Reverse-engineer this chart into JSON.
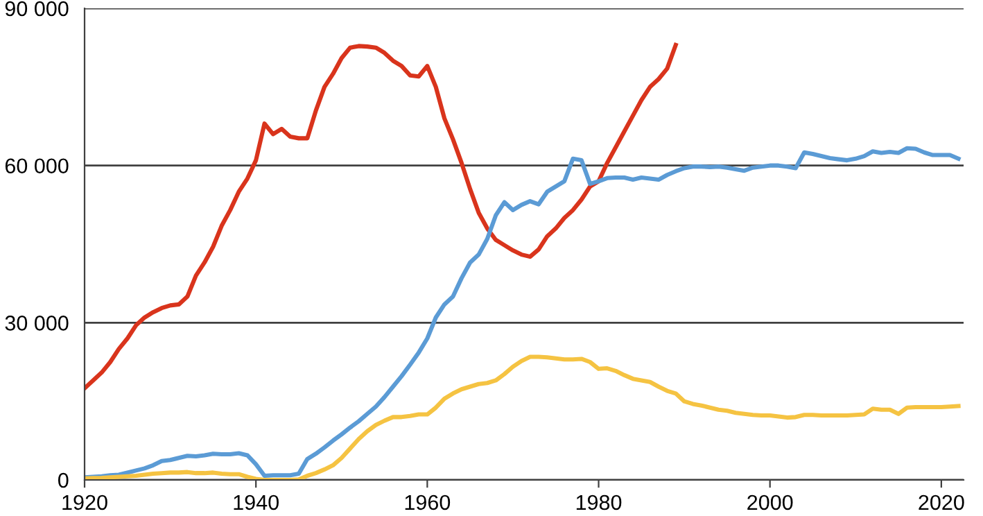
{
  "chart_data": {
    "type": "line",
    "xlim": [
      1920,
      2022.6
    ],
    "xticks": [
      1920,
      1940,
      1960,
      1980,
      2000,
      2020
    ],
    "ylim": [
      0,
      90000
    ],
    "yticks": [
      {
        "value": 0,
        "label": "0"
      },
      {
        "value": 30000,
        "label": "30 000"
      },
      {
        "value": 60000,
        "label": "60 000"
      },
      {
        "value": 90000,
        "label": "90 000"
      }
    ],
    "grid": "y",
    "line_style": "solid",
    "series": [
      {
        "color": "#d9341c",
        "x": [
          1920,
          1921,
          1922,
          1923,
          1924,
          1925,
          1926,
          1927,
          1928,
          1929,
          1930,
          1931,
          1932,
          1933,
          1934,
          1935,
          1936,
          1937,
          1938,
          1939,
          1940,
          1941,
          1942,
          1943,
          1944,
          1945,
          1946,
          1947,
          1948,
          1949,
          1950,
          1951,
          1952,
          1953,
          1954,
          1955,
          1956,
          1957,
          1958,
          1959,
          1960,
          1961,
          1962,
          1963,
          1964,
          1965,
          1966,
          1967,
          1968,
          1969,
          1970,
          1971,
          1972,
          1973,
          1974,
          1975,
          1976,
          1977,
          1978,
          1979,
          1980,
          1981,
          1982,
          1983,
          1984,
          1985,
          1986,
          1987,
          1988,
          1989
        ],
        "values": [
          17500,
          19000,
          20500,
          22500,
          25000,
          27000,
          29500,
          31000,
          32000,
          32800,
          33300,
          33500,
          35000,
          39000,
          41500,
          44500,
          48500,
          51500,
          55000,
          57500,
          61000,
          68000,
          66000,
          67000,
          65500,
          65200,
          65200,
          70500,
          75000,
          77500,
          80500,
          82500,
          82800,
          82700,
          82500,
          81500,
          80000,
          79000,
          77200,
          77000,
          79000,
          75000,
          69000,
          65000,
          60500,
          55500,
          51000,
          48000,
          45800,
          44800,
          43800,
          43000,
          42600,
          44000,
          46500,
          48000,
          50000,
          51500,
          53500,
          56000,
          57000,
          60500,
          63500,
          66500,
          69500,
          72500,
          75000,
          76500,
          78500,
          83000
        ]
      },
      {
        "color": "#5b9bd5",
        "x": [
          1920,
          1921,
          1922,
          1923,
          1924,
          1925,
          1926,
          1927,
          1928,
          1929,
          1930,
          1931,
          1932,
          1933,
          1934,
          1935,
          1936,
          1937,
          1938,
          1939,
          1940,
          1941,
          1942,
          1943,
          1944,
          1945,
          1946,
          1947,
          1948,
          1949,
          1950,
          1951,
          1952,
          1953,
          1954,
          1955,
          1956,
          1957,
          1958,
          1959,
          1960,
          1961,
          1962,
          1963,
          1964,
          1965,
          1966,
          1967,
          1968,
          1969,
          1970,
          1971,
          1972,
          1973,
          1974,
          1975,
          1976,
          1977,
          1978,
          1979,
          1980,
          1981,
          1982,
          1983,
          1984,
          1985,
          1986,
          1987,
          1988,
          1989,
          1990,
          1991,
          1992,
          1993,
          1994,
          1995,
          1996,
          1997,
          1998,
          1999,
          2000,
          2001,
          2002,
          2003,
          2004,
          2005,
          2006,
          2007,
          2008,
          2009,
          2010,
          2011,
          2012,
          2013,
          2014,
          2015,
          2016,
          2017,
          2018,
          2019,
          2020,
          2021,
          2022
        ],
        "values": [
          500,
          600,
          700,
          900,
          1000,
          1400,
          1800,
          2200,
          2800,
          3600,
          3800,
          4200,
          4600,
          4500,
          4700,
          5000,
          4900,
          4900,
          5100,
          4700,
          3000,
          800,
          900,
          900,
          900,
          1200,
          4000,
          5000,
          6200,
          7500,
          8700,
          10000,
          11200,
          12600,
          14000,
          15800,
          17800,
          19800,
          22000,
          24300,
          27000,
          31000,
          33500,
          35000,
          38500,
          41500,
          43000,
          46000,
          50500,
          53000,
          51500,
          52500,
          53200,
          52600,
          55000,
          56000,
          57000,
          61300,
          61000,
          56500,
          57000,
          57600,
          57700,
          57700,
          57300,
          57700,
          57500,
          57300,
          58200,
          58900,
          59500,
          59800,
          59800,
          59700,
          59800,
          59600,
          59300,
          59000,
          59600,
          59800,
          60000,
          60000,
          59800,
          59500,
          62500,
          62200,
          61800,
          61400,
          61200,
          61000,
          61300,
          61800,
          62700,
          62400,
          62600,
          62400,
          63300,
          63200,
          62500,
          62000,
          62000,
          62000,
          61300
        ]
      },
      {
        "color": "#f5c342",
        "x": [
          1920,
          1921,
          1922,
          1923,
          1924,
          1925,
          1926,
          1927,
          1928,
          1929,
          1930,
          1931,
          1932,
          1933,
          1934,
          1935,
          1936,
          1937,
          1938,
          1939,
          1940,
          1941,
          1942,
          1943,
          1944,
          1945,
          1946,
          1947,
          1948,
          1949,
          1950,
          1951,
          1952,
          1953,
          1954,
          1955,
          1956,
          1957,
          1958,
          1959,
          1960,
          1961,
          1962,
          1963,
          1964,
          1965,
          1966,
          1967,
          1968,
          1969,
          1970,
          1971,
          1972,
          1973,
          1974,
          1975,
          1976,
          1977,
          1978,
          1979,
          1980,
          1981,
          1982,
          1983,
          1984,
          1985,
          1986,
          1987,
          1988,
          1989,
          1990,
          1991,
          1992,
          1993,
          1994,
          1995,
          1996,
          1997,
          1998,
          1999,
          2000,
          2001,
          2002,
          2003,
          2004,
          2005,
          2006,
          2007,
          2008,
          2009,
          2010,
          2011,
          2012,
          2013,
          2014,
          2015,
          2016,
          2017,
          2018,
          2019,
          2020,
          2021,
          2022
        ],
        "values": [
          300,
          350,
          400,
          500,
          600,
          700,
          800,
          1000,
          1200,
          1300,
          1400,
          1400,
          1500,
          1300,
          1300,
          1400,
          1200,
          1100,
          1100,
          600,
          200,
          0,
          0,
          0,
          0,
          100,
          800,
          1300,
          2000,
          2800,
          4200,
          6000,
          7800,
          9300,
          10500,
          11300,
          12000,
          12000,
          12200,
          12500,
          12500,
          13800,
          15500,
          16500,
          17300,
          17800,
          18300,
          18500,
          19000,
          20200,
          21600,
          22700,
          23500,
          23500,
          23400,
          23200,
          23000,
          23000,
          23100,
          22500,
          21200,
          21300,
          20800,
          20000,
          19300,
          19000,
          18700,
          17800,
          17000,
          16500,
          15000,
          14500,
          14200,
          13800,
          13400,
          13200,
          12800,
          12600,
          12400,
          12300,
          12300,
          12100,
          11900,
          12000,
          12400,
          12400,
          12300,
          12300,
          12300,
          12300,
          12400,
          12500,
          13600,
          13400,
          13400,
          12600,
          13800,
          13900,
          13900,
          13900,
          13900,
          14000,
          14100
        ]
      }
    ]
  }
}
